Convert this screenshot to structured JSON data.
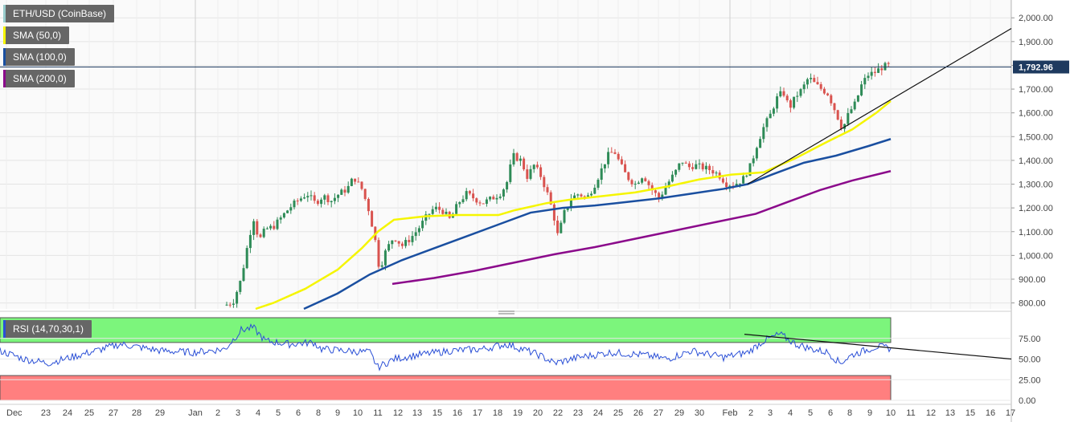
{
  "legend": {
    "instrument": "ETH/USD (CoinBase)",
    "sma50": "SMA (50,0)",
    "sma100": "SMA (100,0)",
    "sma200": "SMA (200,0)",
    "rsi": "RSI (14,70,30,1)"
  },
  "colors": {
    "sma50": "#f5f500",
    "sma100": "#1a4fa0",
    "sma200": "#8b0a8b",
    "candle_up": "#2e8b57",
    "candle_down": "#d9534f",
    "rsi_line": "#2a4fd6",
    "overbought": "#7cf57c",
    "oversold": "#ff7f7f",
    "price_tag": "#1e3a5f"
  },
  "chart_data": {
    "type": "candlestick",
    "title": "ETH/USD (CoinBase)",
    "price_axis": {
      "ticks": [
        "2,000.00",
        "1,900.00",
        "1,800.00",
        "1,700.00",
        "1,600.00",
        "1,500.00",
        "1,400.00",
        "1,300.00",
        "1,200.00",
        "1,100.00",
        "1,000.00",
        "900.00",
        "800.00"
      ],
      "tick_values": [
        2000,
        1900,
        1800,
        1700,
        1600,
        1500,
        1400,
        1300,
        1200,
        1100,
        1000,
        900,
        800
      ],
      "ylim": [
        775,
        2075
      ]
    },
    "last_price": {
      "label": "1,792.96",
      "value": 1792.96
    },
    "x_axis_labels": [
      "Dec",
      "23",
      "24",
      "25",
      "27",
      "28",
      "29",
      "Jan",
      "2",
      "3",
      "4",
      "5",
      "6",
      "8",
      "9",
      "10",
      "11",
      "12",
      "13",
      "15",
      "16",
      "17",
      "18",
      "19",
      "20",
      "22",
      "23",
      "24",
      "25",
      "26",
      "27",
      "29",
      "30",
      "Feb",
      "2",
      "3",
      "4",
      "5",
      "6",
      "8",
      "9",
      "10",
      "11",
      "12",
      "13",
      "15",
      "16",
      "17"
    ],
    "trend_line": {
      "from": [
        "Jan 31",
        1300
      ],
      "to": [
        "Feb 17",
        1955
      ]
    },
    "rsi": {
      "label": "RSI (14,70,30,1)",
      "ticks": [
        "75.00",
        "50.00",
        "25.00",
        "0.00"
      ],
      "tick_values": [
        75,
        50,
        25,
        0
      ],
      "overbought": 70,
      "oversold": 30,
      "trend_line": {
        "from": [
          "Feb 1",
          80
        ],
        "to": [
          "Feb 17",
          50
        ]
      }
    }
  }
}
